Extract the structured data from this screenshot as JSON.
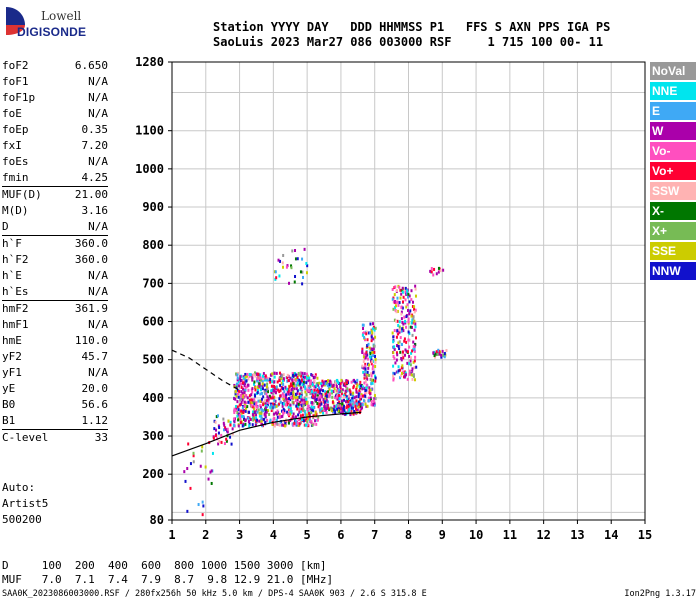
{
  "logo": {
    "line1": "Lowell",
    "line2": "DIGISONDE"
  },
  "header": {
    "line1": "Station YYYY DAY   DDD HHMMSS P1   FFS S AXN PPS IGA PS",
    "line2": "SaoLuis 2023 Mar27 086 003000 RSF     1 715 100 00- 11"
  },
  "params": {
    "group1": [
      {
        "k": "foF2",
        "v": "6.650"
      },
      {
        "k": "foF1",
        "v": "N/A"
      },
      {
        "k": "foF1p",
        "v": "N/A"
      },
      {
        "k": "foE",
        "v": "N/A"
      },
      {
        "k": "foEp",
        "v": "0.35"
      },
      {
        "k": "fxI",
        "v": "7.20"
      },
      {
        "k": "foEs",
        "v": "N/A"
      },
      {
        "k": "fmin",
        "v": "4.25"
      }
    ],
    "group2": [
      {
        "k": "MUF(D)",
        "v": "21.00"
      },
      {
        "k": "M(D)",
        "v": "3.16"
      },
      {
        "k": "D",
        "v": "N/A"
      }
    ],
    "group3": [
      {
        "k": "h`F",
        "v": "360.0"
      },
      {
        "k": "h`F2",
        "v": "360.0"
      },
      {
        "k": "h`E",
        "v": "N/A"
      },
      {
        "k": "h`Es",
        "v": "N/A"
      }
    ],
    "group4": [
      {
        "k": "hmF2",
        "v": "361.9"
      },
      {
        "k": "hmF1",
        "v": "N/A"
      },
      {
        "k": "hmE",
        "v": "110.0"
      },
      {
        "k": "yF2",
        "v": "45.7"
      },
      {
        "k": "yF1",
        "v": "N/A"
      },
      {
        "k": "yE",
        "v": "20.0"
      },
      {
        "k": "B0",
        "v": "56.6"
      },
      {
        "k": "B1",
        "v": "1.12"
      }
    ],
    "group5": [
      {
        "k": "C-level",
        "v": "33"
      }
    ]
  },
  "auto": {
    "line1": "Auto:",
    "line2": "Artist5",
    "line3": "500200"
  },
  "legend": [
    {
      "label": "NoVal",
      "color": "#999999"
    },
    {
      "label": "NNE",
      "color": "#00e5ee"
    },
    {
      "label": "E",
      "color": "#3fa9f5"
    },
    {
      "label": "W",
      "color": "#aa00aa"
    },
    {
      "label": "Vo-",
      "color": "#ff4fbf"
    },
    {
      "label": "Vo+",
      "color": "#ff0033"
    },
    {
      "label": "SSW",
      "color": "#ffb3b3"
    },
    {
      "label": "X-",
      "color": "#007700"
    },
    {
      "label": "X+",
      "color": "#77bb55"
    },
    {
      "label": "SSE",
      "color": "#cccc00"
    },
    {
      "label": "NNW",
      "color": "#1111cc"
    }
  ],
  "chart_data": {
    "type": "scatter",
    "xlim": [
      1,
      15
    ],
    "ylim": [
      80,
      1280
    ],
    "x_ticks": [
      1,
      2,
      3,
      4,
      5,
      6,
      7,
      8,
      9,
      10,
      11,
      12,
      13,
      14,
      15
    ],
    "y_ticks": [
      80,
      200,
      300,
      400,
      500,
      600,
      700,
      800,
      900,
      1000,
      1100,
      1280
    ],
    "grid": true,
    "trace_solid": [
      [
        1.0,
        248
      ],
      [
        2.0,
        280
      ],
      [
        3.0,
        315
      ],
      [
        4.0,
        336
      ],
      [
        5.0,
        350
      ],
      [
        6.0,
        358
      ],
      [
        6.6,
        362
      ]
    ],
    "trace_dashed": [
      [
        1.0,
        525
      ],
      [
        1.5,
        505
      ],
      [
        2.0,
        475
      ],
      [
        2.5,
        445
      ],
      [
        3.0,
        420
      ]
    ],
    "echo_clusters": [
      {
        "x": [
          2.8,
          5.3
        ],
        "y": [
          330,
          470
        ],
        "n": 900
      },
      {
        "x": [
          5.3,
          6.6
        ],
        "y": [
          360,
          450
        ],
        "n": 350
      },
      {
        "x": [
          6.6,
          7.0
        ],
        "y": [
          380,
          600
        ],
        "n": 160
      },
      {
        "x": [
          7.5,
          8.2
        ],
        "y": [
          450,
          700
        ],
        "n": 220
      },
      {
        "x": [
          2.2,
          2.8
        ],
        "y": [
          280,
          360
        ],
        "n": 40
      },
      {
        "x": [
          8.7,
          9.1
        ],
        "y": [
          510,
          530
        ],
        "n": 25
      },
      {
        "x": [
          8.6,
          9.0
        ],
        "y": [
          725,
          745
        ],
        "n": 12
      },
      {
        "x": [
          4.0,
          5.0
        ],
        "y": [
          700,
          800
        ],
        "n": 30
      },
      {
        "x": [
          1.3,
          2.2
        ],
        "y": [
          80,
          300
        ],
        "n": 25
      }
    ]
  },
  "footer": {
    "line1": "D     100  200  400  600  800 1000 1500 3000 [km]",
    "line2": "MUF   7.0  7.1  7.4  7.9  8.7  9.8 12.9 21.0 [MHz]",
    "file": "SAA0K_2023086003000.RSF / 280fx256h 50 kHz 5.0 km / DPS-4 SAA0K 903 / 2.6 S 315.8 E",
    "version": "Ion2Png 1.3.17"
  }
}
